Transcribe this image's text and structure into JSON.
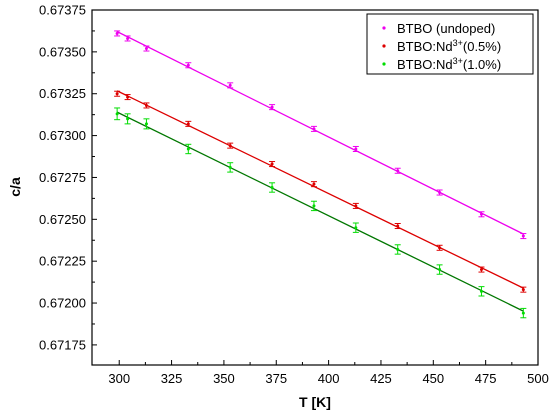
{
  "chart_data": {
    "type": "scatter",
    "xlabel": "T [K]",
    "ylabel": "c/a",
    "xlim": [
      287,
      500
    ],
    "ylim": [
      0.67163,
      0.67375
    ],
    "xticks": [
      300,
      325,
      350,
      375,
      400,
      425,
      450,
      475,
      500
    ],
    "yticks": [
      0.67175,
      0.672,
      0.67225,
      0.6725,
      0.67275,
      0.673,
      0.67325,
      0.6735,
      0.67375
    ],
    "ytick_labels": [
      "0.67175",
      "0.67200",
      "0.67225",
      "0.67250",
      "0.67275",
      "0.67300",
      "0.67325",
      "0.67350",
      "0.67375"
    ],
    "grid": false,
    "legend_position": "top-right",
    "series": [
      {
        "name": "BTBO (undoped)",
        "legend_base": "BTBO (undoped)",
        "legend_sup": "",
        "legend_suffix": "",
        "color": "#ee00ee",
        "x": [
          299,
          304,
          313,
          333,
          353,
          373,
          393,
          413,
          433,
          453,
          473,
          493
        ],
        "y": [
          0.67361,
          0.67358,
          0.67352,
          0.67342,
          0.6733,
          0.67317,
          0.67304,
          0.67292,
          0.67279,
          0.67266,
          0.67253,
          0.6724
        ],
        "err": [
          1.5e-05,
          1.5e-05,
          1.5e-05,
          1.5e-05,
          1.5e-05,
          1.5e-05,
          1.5e-05,
          1.5e-05,
          1.5e-05,
          1.5e-05,
          1.5e-05,
          1.5e-05
        ]
      },
      {
        "name": "BTBO:Nd3+(0.5%)",
        "legend_base": "BTBO:Nd",
        "legend_sup": "3+",
        "legend_suffix": "(0.5%)",
        "color": "#dd0000",
        "x": [
          299,
          304,
          313,
          333,
          353,
          373,
          393,
          413,
          433,
          453,
          473,
          493
        ],
        "y": [
          0.67325,
          0.67323,
          0.67318,
          0.67307,
          0.67294,
          0.67283,
          0.67271,
          0.67258,
          0.67246,
          0.67233,
          0.6722,
          0.67208
        ],
        "err": [
          1.5e-05,
          1.5e-05,
          1.5e-05,
          1.5e-05,
          1.5e-05,
          1.5e-05,
          1.5e-05,
          1.5e-05,
          1.5e-05,
          1.5e-05,
          1.5e-05,
          1.5e-05
        ]
      },
      {
        "name": "BTBO:Nd3+(1.0%)",
        "legend_base": "BTBO:Nd",
        "legend_sup": "3+",
        "legend_suffix": "(1.0%)",
        "color": "#00dd00",
        "fit_color": "#007700",
        "x": [
          299,
          304,
          313,
          333,
          353,
          373,
          393,
          413,
          433,
          453,
          473,
          493
        ],
        "y": [
          0.67313,
          0.6731,
          0.67307,
          0.67292,
          0.67281,
          0.67269,
          0.67258,
          0.67245,
          0.67232,
          0.6722,
          0.67207,
          0.67194
        ],
        "err": [
          3.5e-05,
          3e-05,
          3e-05,
          2.8e-05,
          2.8e-05,
          2.8e-05,
          2.8e-05,
          2.8e-05,
          2.8e-05,
          2.8e-05,
          2.8e-05,
          2.8e-05
        ]
      }
    ]
  }
}
